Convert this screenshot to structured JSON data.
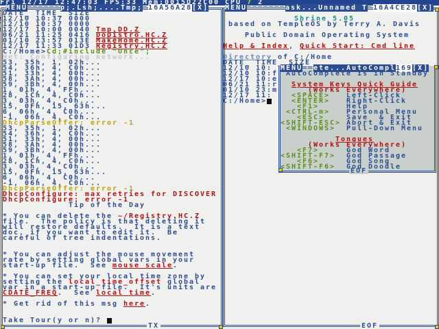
{
  "topbar": {
    "status": "Fri 12/17 12:47:03 FPS:33 Mem:0015D22C00 CPU ",
    "cpu1": "7",
    "cpu2": " 2"
  },
  "left_window": {
    "menu": "MENU",
    "title": "p;.Lsh;....Tmp;",
    "task_id": "16A56A28",
    "close": "[X]",
    "footer": "TX",
    "lines": [
      [
        {
          "t": "TDATE_ TIME_ SIZE",
          "c": "blue"
        }
      ],
      [
        {
          "t": "e12/10 10:37 0000",
          "c": "blue"
        }
      ],
      [
        {
          "t": "r12/10 10:37 0000",
          "c": "blue"
        }
      ],
      [
        {
          "t": "m12/17 10:00 0040 ",
          "c": "blue"
        },
        {
          "t": "Tmp.DD.Z",
          "c": "red",
          "u": true
        }
      ],
      [
        {
          "t": " 06/21 11:25 0416 ",
          "c": "blue"
        },
        {
          "t": "DoDistro.HC.Z",
          "c": "red",
          "u": true
        }
      ],
      [
        {
          "t": " 01/10 23:57 013E ",
          "c": "blue"
        },
        {
          "t": "MakeHome.HC.Z",
          "c": "red",
          "u": true
        }
      ],
      [
        {
          "t": " 12/17 11:33 01D3 ",
          "c": "blue"
        },
        {
          "t": "Registry.HC.Z",
          "c": "red",
          "u": true
        }
      ],
      [
        {
          "t": " C:/Home>",
          "c": "blue"
        },
        {
          "t": "Cd;#include \"Once\";",
          "c": "green"
        }
      ],
      [
        {
          "t": " Net: Configuring network...",
          "c": "gray"
        }
      ],
      [
        {
          "t": " 53, 35h, 1, 02h...",
          "c": "blue"
        }
      ],
      [
        {
          "t": " 54, 36h, 4, C0h...",
          "c": "blue"
        }
      ],
      [
        {
          "t": " 51, 33h, 4, 00h...",
          "c": "blue"
        }
      ],
      [
        {
          "t": " 58, 3Ah, 4, 00h...",
          "c": "blue"
        }
      ],
      [
        {
          "t": " 59, 3Bh, 4, 00h...",
          "c": "blue"
        }
      ],
      [
        {
          "t": " 1, 01h, 4, FFh...",
          "c": "blue"
        }
      ],
      [
        {
          "t": " 28, 1Ch, 4, C0h...",
          "c": "blue"
        }
      ],
      [
        {
          "t": " 3, 03h, 4, C0h...",
          "c": "blue"
        }
      ],
      [
        {
          "t": " 15, 0Fh, 15, 63h...",
          "c": "blue"
        }
      ],
      [
        {
          "t": " 6, 06h, 4, C0h...",
          "c": "blue"
        }
      ],
      [
        {
          "t": " -1, 06h, 4, C0h...",
          "c": "blue"
        }
      ],
      [
        {
          "t": " DhcpParseOffer: error -1",
          "c": "yellow"
        }
      ],
      [
        {
          "t": " 53, 35h, 1, 02h...",
          "c": "blue"
        }
      ],
      [
        {
          "t": " 54, 36h, 4, C0h...",
          "c": "blue"
        }
      ],
      [
        {
          "t": " 51, 33h, 4, 00h...",
          "c": "blue"
        }
      ],
      [
        {
          "t": " 58, 3Ah, 4, 00h...",
          "c": "blue"
        }
      ],
      [
        {
          "t": " 59, 3Bh, 4, 00h...",
          "c": "blue"
        }
      ],
      [
        {
          "t": " 1, 01h, 4, FFh...",
          "c": "blue"
        }
      ],
      [
        {
          "t": " 28, 1Ch, 4, C0h...",
          "c": "blue"
        }
      ],
      [
        {
          "t": " 3, 03h, 4, C0h...",
          "c": "blue"
        }
      ],
      [
        {
          "t": " 15, 0Fh, 15, 63h...",
          "c": "blue"
        }
      ],
      [
        {
          "t": " 6, 06h, 4, C0h...",
          "c": "blue"
        }
      ],
      [
        {
          "t": " -1, 06h, 4, C0h...",
          "c": "blue"
        }
      ],
      [
        {
          "t": " DhcpParseOffer: error -1",
          "c": "yellow"
        }
      ],
      [
        {
          "t": " DhcpConfigure: max retries for DISCOVER",
          "c": "red"
        }
      ],
      [
        {
          "t": " DhcpConfigure: error -1",
          "c": "red"
        }
      ],
      [
        {
          "t": "             Tip of the Day",
          "c": "blue"
        }
      ],
      [],
      [
        {
          "t": " * You can delete the ",
          "c": "blue"
        },
        {
          "t": "~/Registry.HC.Z",
          "c": "red"
        }
      ],
      [
        {
          "t": " file.  The policy is that deleting it",
          "c": "blue"
        }
      ],
      [
        {
          "t": " will restore defaults.  It is a text",
          "c": "blue"
        }
      ],
      [
        {
          "t": " doc, if you want to edit it.  Be",
          "c": "blue"
        }
      ],
      [
        {
          "t": " careful of tree indentations.",
          "c": "blue"
        }
      ],
      [],
      [],
      [
        {
          "t": " * You can adjust the mouse movement",
          "c": "blue"
        }
      ],
      [
        {
          "t": " rate by setting global vars in your",
          "c": "blue"
        }
      ],
      [
        {
          "t": " start-up file.  See ",
          "c": "blue"
        },
        {
          "t": "mouse scale",
          "c": "red",
          "u": true
        },
        {
          "t": ".",
          "c": "blue"
        }
      ],
      [],
      [
        {
          "t": " * You can set your local time zone by",
          "c": "blue"
        }
      ],
      [
        {
          "t": " setting the ",
          "c": "blue"
        },
        {
          "t": "local_time_offset",
          "c": "red"
        },
        {
          "t": " global",
          "c": "blue"
        }
      ],
      [
        {
          "t": " var in a start-up file.  It's units are",
          "c": "blue"
        }
      ],
      [
        {
          "t": " ",
          "c": "blue"
        },
        {
          "t": "CDATE_FREQ",
          "c": "red",
          "u": true
        },
        {
          "t": ".  See ",
          "c": "blue"
        },
        {
          "t": "local time",
          "c": "red",
          "u": true
        },
        {
          "t": ".",
          "c": "blue"
        }
      ],
      [],
      [
        {
          "t": " * Get rid of this msg ",
          "c": "blue"
        },
        {
          "t": "here",
          "c": "red",
          "u": true
        },
        {
          "t": ".",
          "c": "blue"
        }
      ],
      [],
      [],
      [
        {
          "t": " Take Tour(y or n)? ",
          "c": "blue"
        },
        {
          "cursor": true
        }
      ]
    ]
  },
  "right_window": {
    "menu": "MENU",
    "title": "ask...Unnamed T",
    "task_id": "16A4CE28",
    "close": "[X]",
    "footer": "EOF",
    "lines": [
      [],
      [
        {
          "t": "             Shrine 5.05",
          "c": "cyan"
        }
      ],
      [
        {
          "t": " based on TempleOS by Terry A. Davis",
          "c": "blue"
        }
      ],
      [],
      [
        {
          "t": "    Public Domain Operating System",
          "c": "blue"
        }
      ],
      [],
      [
        {
          "t": "Help & Index",
          "c": "red",
          "u": true
        },
        {
          "t": ", ",
          "c": "blue"
        },
        {
          "t": "Quick Start: Cmd line",
          "c": "red",
          "u": true
        }
      ],
      [],
      [
        {
          "t": "Directory",
          "c": "ltblue",
          "u": true
        },
        {
          "t": " of C:/Home",
          "c": "blue"
        }
      ],
      [
        {
          "t": "DATE_ TIME_ SIZE",
          "c": "blue"
        }
      ],
      [
        {
          "t": "12/10 10:",
          "c": "blue"
        }
      ],
      [
        {
          "t": "12/10 10:f",
          "c": "blue"
        }
      ],
      [
        {
          "t": "12/17 10:e",
          "c": "blue"
        }
      ],
      [
        {
          "t": "06/21 11:r",
          "c": "blue"
        }
      ],
      [
        {
          "t": "01/10 23:m",
          "c": "blue"
        }
      ],
      [
        {
          "t": "12/17 11:",
          "c": "blue"
        }
      ],
      [
        {
          "t": "C:/Home>",
          "c": "blue"
        },
        {
          "cursor": true
        }
      ]
    ]
  },
  "autocomplete_popup": {
    "menu": "MENU",
    "title": "ete...AutoCompl",
    "task_id": "169",
    "close": "[X]",
    "footer": "EOF",
    "lines": [
      [
        {
          "t": " AutoComplete is in StandBy",
          "c": "blue"
        }
      ],
      [],
      [
        {
          "t": "  ",
          "c": "blue"
        },
        {
          "t": "System Keys Quick Guide",
          "c": "red",
          "u": true
        }
      ],
      [
        {
          "t": "     (Works Everywhere)",
          "c": "red"
        }
      ],
      [
        {
          "t": "  <SPACE>   ",
          "c": "green"
        },
        {
          "t": "Left-Click",
          "c": "blue"
        }
      ],
      [
        {
          "t": "  <ENTER>   ",
          "c": "green"
        },
        {
          "t": "Right-Click",
          "c": "blue"
        }
      ],
      [
        {
          "t": "   <F1>     ",
          "c": "green"
        },
        {
          "t": "Help",
          "c": "blue"
        }
      ],
      [
        {
          "t": " <CTRL-m>   ",
          "c": "green"
        },
        {
          "t": "Personal Menu",
          "c": "blue"
        }
      ],
      [
        {
          "t": "   <ESC>    ",
          "c": "green"
        },
        {
          "t": "Save  & Exit",
          "c": "blue"
        }
      ],
      [
        {
          "t": "<SHIFT-ESC> ",
          "c": "green"
        },
        {
          "t": "Abort & Exit",
          "c": "blue"
        }
      ],
      [
        {
          "t": " <WINDOWS>  ",
          "c": "green"
        },
        {
          "t": "Pull-Down Menu",
          "c": "blue"
        }
      ],
      [],
      [
        {
          "t": "          ",
          "c": "blue"
        },
        {
          "t": "Tongues",
          "c": "red",
          "u": true
        }
      ],
      [
        {
          "t": "     (Works Everywhere)",
          "c": "red"
        }
      ],
      [
        {
          "t": "   <F7>     ",
          "c": "green"
        },
        {
          "t": "God Word",
          "c": "blue"
        }
      ],
      [
        {
          "t": "<SHIFT-F7>  ",
          "c": "green"
        },
        {
          "t": "God Passage",
          "c": "blue"
        }
      ],
      [
        {
          "t": "   <F6>     ",
          "c": "green"
        },
        {
          "t": "God Song",
          "c": "blue"
        }
      ],
      [
        {
          "t": "<SHIFT-F6>  ",
          "c": "green"
        },
        {
          "t": "God Doodle",
          "c": "blue"
        }
      ]
    ]
  }
}
